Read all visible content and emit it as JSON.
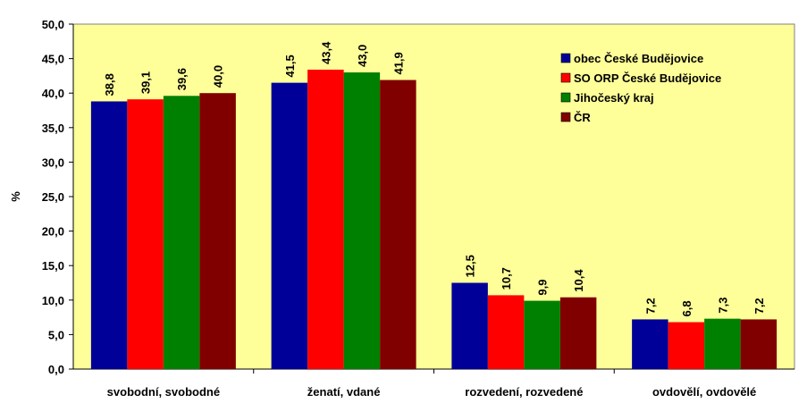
{
  "chart_data": {
    "type": "bar",
    "title": "",
    "xlabel": "",
    "ylabel": "%",
    "ylim": [
      0,
      50
    ],
    "ytick_step": 5,
    "ytick_labels": [
      "0,0",
      "5,0",
      "10,0",
      "15,0",
      "20,0",
      "25,0",
      "30,0",
      "35,0",
      "40,0",
      "45,0",
      "50,0"
    ],
    "grid": false,
    "legend_position": "top-right",
    "categories": [
      "svobodní, svobodné",
      "ženatí, vdané",
      "rozvedení, rozvedené",
      "ovdovělí, ovdovělé"
    ],
    "series": [
      {
        "name": "obec České Budějovice",
        "color": "#000099",
        "values": [
          38.8,
          41.5,
          12.5,
          7.2
        ],
        "labels": [
          "38,8",
          "41,5",
          "12,5",
          "7,2"
        ]
      },
      {
        "name": "SO ORP České Budějovice",
        "color": "#ff0000",
        "values": [
          39.1,
          43.4,
          10.7,
          6.8
        ],
        "labels": [
          "39,1",
          "43,4",
          "10,7",
          "6,8"
        ]
      },
      {
        "name": "Jihočeský kraj",
        "color": "#008000",
        "values": [
          39.6,
          43.0,
          9.9,
          7.3
        ],
        "labels": [
          "39,6",
          "43,0",
          "9,9",
          "7,3"
        ]
      },
      {
        "name": "ČR",
        "color": "#800000",
        "values": [
          40.0,
          41.9,
          10.4,
          7.2
        ],
        "labels": [
          "40,0",
          "41,9",
          "10,4",
          "7,2"
        ]
      }
    ],
    "plot_background": "#ffff99"
  }
}
